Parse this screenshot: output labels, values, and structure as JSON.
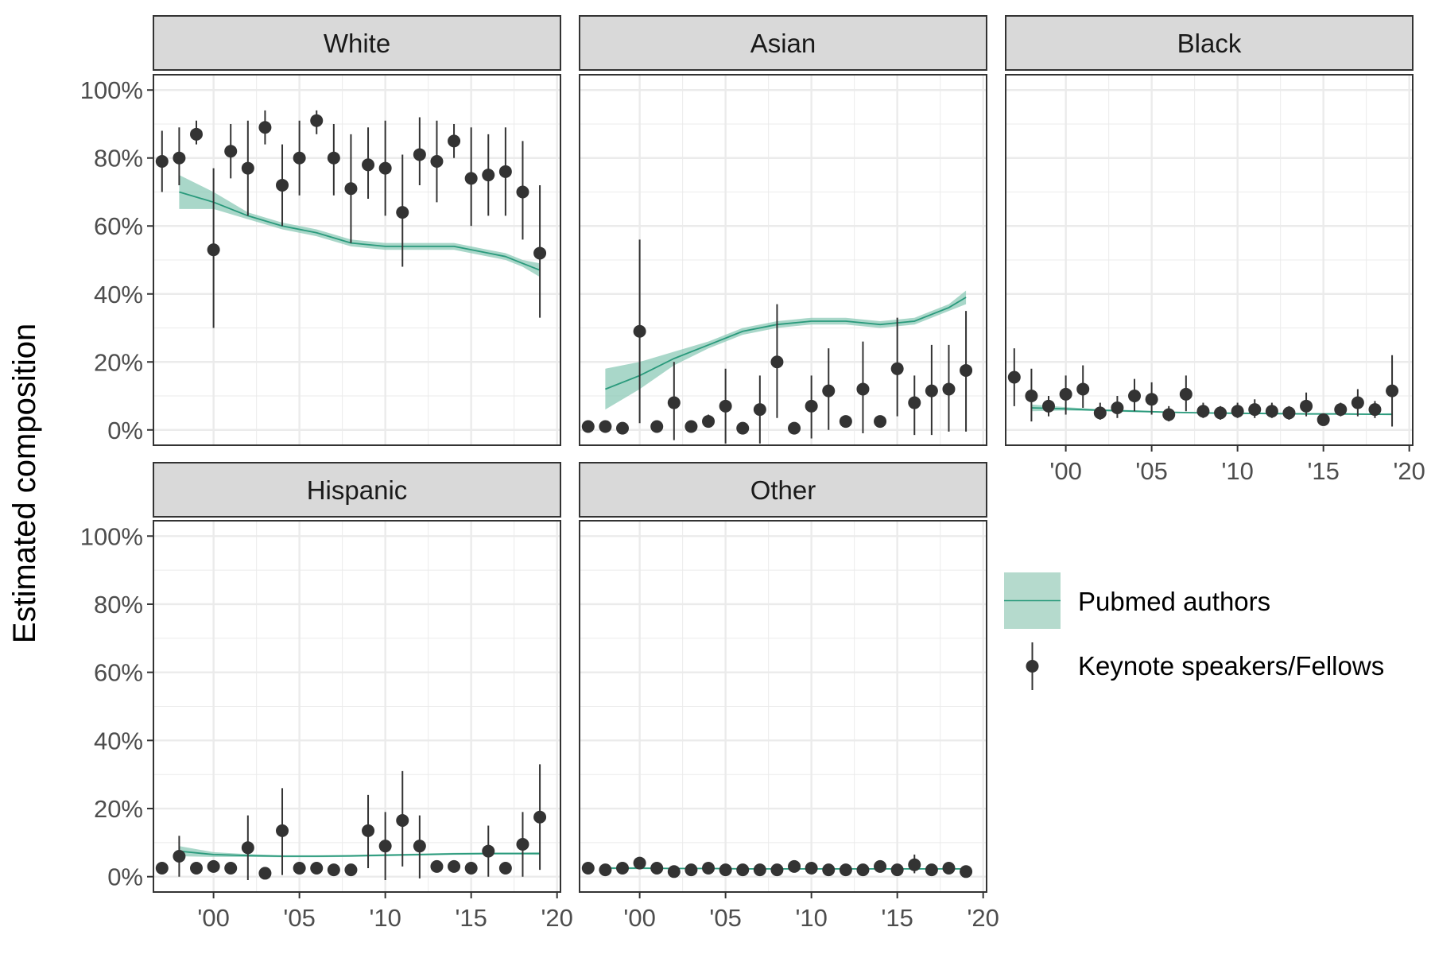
{
  "chart_data": {
    "type": "scatter",
    "ylabel": "Estimated composition",
    "y_ticks": [
      "100%",
      "80%",
      "60%",
      "40%",
      "20%",
      "0%"
    ],
    "y_tick_values": [
      1.0,
      0.8,
      0.6,
      0.4,
      0.2,
      0.0
    ],
    "x_ticks": [
      "'00",
      "'05",
      "'10",
      "'15",
      "'20"
    ],
    "x_tick_values": [
      2000,
      2005,
      2010,
      2015,
      2020
    ],
    "xlim": [
      1996.5,
      2020.2
    ],
    "ylim": [
      -0.045,
      1.045
    ],
    "grid": true,
    "legend_position": "right",
    "legend": [
      {
        "label": "Pubmed authors",
        "kind": "ribbon-line"
      },
      {
        "label": "Keynote speakers/Fellows",
        "kind": "point-range"
      }
    ],
    "colors": {
      "line": "#2a9a7c",
      "ribbon": "#8cc9b7",
      "point": "#333333",
      "strip": "#d9d9d9",
      "grid": "#ebebeb"
    },
    "years": [
      1997,
      1998,
      1999,
      2000,
      2001,
      2002,
      2003,
      2004,
      2005,
      2006,
      2007,
      2008,
      2009,
      2010,
      2011,
      2012,
      2013,
      2014,
      2015,
      2016,
      2017,
      2018,
      2019
    ],
    "panels": [
      {
        "name": "White",
        "points": {
          "y": [
            0.79,
            0.8,
            0.87,
            0.53,
            0.82,
            0.77,
            0.89,
            0.72,
            0.8,
            0.91,
            0.8,
            0.71,
            0.78,
            0.77,
            0.64,
            0.81,
            0.79,
            0.85,
            0.74,
            0.75,
            0.76,
            0.7,
            0.52
          ],
          "lo": [
            0.7,
            0.72,
            0.84,
            0.3,
            0.74,
            0.63,
            0.84,
            0.6,
            0.69,
            0.87,
            0.69,
            0.55,
            0.68,
            0.63,
            0.48,
            0.72,
            0.67,
            0.8,
            0.6,
            0.63,
            0.63,
            0.56,
            0.33
          ],
          "hi": [
            0.88,
            0.89,
            0.91,
            0.77,
            0.9,
            0.91,
            0.94,
            0.84,
            0.91,
            0.94,
            0.9,
            0.87,
            0.89,
            0.91,
            0.81,
            0.92,
            0.91,
            0.9,
            0.89,
            0.87,
            0.89,
            0.85,
            0.72
          ]
        },
        "trend": {
          "x": [
            1998,
            2000,
            2002,
            2004,
            2006,
            2008,
            2010,
            2012,
            2014,
            2016,
            2017,
            2018,
            2019
          ],
          "y": [
            0.7,
            0.67,
            0.63,
            0.6,
            0.58,
            0.55,
            0.54,
            0.54,
            0.54,
            0.52,
            0.51,
            0.49,
            0.47
          ],
          "lo": [
            0.65,
            0.65,
            0.62,
            0.59,
            0.57,
            0.54,
            0.53,
            0.53,
            0.53,
            0.51,
            0.5,
            0.48,
            0.45
          ],
          "hi": [
            0.75,
            0.7,
            0.64,
            0.61,
            0.59,
            0.56,
            0.55,
            0.55,
            0.55,
            0.53,
            0.52,
            0.5,
            0.49
          ]
        }
      },
      {
        "name": "Asian",
        "points": {
          "y": [
            0.01,
            0.01,
            0.005,
            0.29,
            0.01,
            0.08,
            0.01,
            0.025,
            0.07,
            0.005,
            0.06,
            0.2,
            0.005,
            0.07,
            0.115,
            0.025,
            0.12,
            0.025,
            0.18,
            0.08,
            0.115,
            0.12,
            0.175
          ],
          "lo": [
            0.0,
            0.0,
            0.0,
            0.02,
            0.0,
            -0.03,
            0.0,
            0.01,
            -0.04,
            0.0,
            -0.04,
            0.035,
            0.0,
            -0.025,
            0.0,
            0.015,
            -0.01,
            0.015,
            0.04,
            -0.015,
            -0.015,
            -0.005,
            -0.005
          ],
          "hi": [
            0.02,
            0.02,
            0.01,
            0.56,
            0.02,
            0.2,
            0.02,
            0.045,
            0.18,
            0.01,
            0.16,
            0.37,
            0.01,
            0.16,
            0.24,
            0.035,
            0.26,
            0.035,
            0.33,
            0.16,
            0.25,
            0.25,
            0.35
          ]
        },
        "trend": {
          "x": [
            1998,
            2000,
            2002,
            2004,
            2006,
            2008,
            2010,
            2012,
            2014,
            2016,
            2017,
            2018,
            2019
          ],
          "y": [
            0.12,
            0.16,
            0.21,
            0.25,
            0.29,
            0.31,
            0.32,
            0.32,
            0.31,
            0.32,
            0.34,
            0.36,
            0.39
          ],
          "lo": [
            0.06,
            0.12,
            0.19,
            0.24,
            0.28,
            0.3,
            0.31,
            0.31,
            0.3,
            0.31,
            0.33,
            0.35,
            0.37
          ],
          "hi": [
            0.18,
            0.2,
            0.23,
            0.26,
            0.3,
            0.32,
            0.33,
            0.33,
            0.32,
            0.33,
            0.35,
            0.37,
            0.41
          ]
        }
      },
      {
        "name": "Black",
        "points": {
          "y": [
            0.155,
            0.1,
            0.07,
            0.105,
            0.12,
            0.05,
            0.065,
            0.1,
            0.09,
            0.045,
            0.105,
            0.055,
            0.05,
            0.055,
            0.06,
            0.055,
            0.05,
            0.07,
            0.03,
            0.06,
            0.08,
            0.06,
            0.115
          ],
          "lo": [
            0.07,
            0.025,
            0.04,
            0.045,
            0.065,
            0.03,
            0.035,
            0.055,
            0.045,
            0.025,
            0.055,
            0.035,
            0.03,
            0.035,
            0.035,
            0.035,
            0.03,
            0.04,
            0.02,
            0.04,
            0.04,
            0.035,
            0.01
          ],
          "hi": [
            0.24,
            0.18,
            0.1,
            0.16,
            0.19,
            0.08,
            0.1,
            0.15,
            0.14,
            0.07,
            0.16,
            0.08,
            0.07,
            0.08,
            0.09,
            0.08,
            0.07,
            0.11,
            0.04,
            0.08,
            0.12,
            0.085,
            0.22
          ]
        },
        "trend": {
          "x": [
            1998,
            2000,
            2002,
            2004,
            2006,
            2008,
            2010,
            2012,
            2014,
            2016,
            2018,
            2019
          ],
          "y": [
            0.065,
            0.062,
            0.058,
            0.055,
            0.052,
            0.05,
            0.049,
            0.048,
            0.047,
            0.047,
            0.046,
            0.046
          ],
          "lo": [
            0.055,
            0.057,
            0.055,
            0.052,
            0.05,
            0.048,
            0.047,
            0.046,
            0.045,
            0.045,
            0.044,
            0.043
          ],
          "hi": [
            0.075,
            0.067,
            0.061,
            0.058,
            0.054,
            0.052,
            0.051,
            0.05,
            0.049,
            0.049,
            0.048,
            0.049
          ]
        }
      },
      {
        "name": "Hispanic",
        "points": {
          "y": [
            0.025,
            0.06,
            0.025,
            0.03,
            0.025,
            0.085,
            0.01,
            0.135,
            0.025,
            0.025,
            0.02,
            0.02,
            0.135,
            0.09,
            0.165,
            0.09,
            0.03,
            0.03,
            0.025,
            0.075,
            0.025,
            0.095,
            0.175
          ],
          "lo": [
            0.015,
            0.0,
            0.015,
            0.02,
            0.015,
            -0.01,
            0.005,
            0.005,
            0.015,
            0.015,
            0.01,
            0.01,
            0.025,
            -0.01,
            0.03,
            -0.005,
            0.02,
            0.02,
            0.015,
            0.0,
            0.015,
            0.0,
            0.02
          ],
          "hi": [
            0.035,
            0.12,
            0.035,
            0.04,
            0.035,
            0.18,
            0.015,
            0.26,
            0.035,
            0.035,
            0.03,
            0.03,
            0.24,
            0.19,
            0.31,
            0.18,
            0.04,
            0.04,
            0.035,
            0.15,
            0.035,
            0.19,
            0.33
          ]
        },
        "trend": {
          "x": [
            1998,
            2000,
            2002,
            2004,
            2006,
            2008,
            2010,
            2012,
            2014,
            2016,
            2018,
            2019
          ],
          "y": [
            0.075,
            0.065,
            0.062,
            0.06,
            0.06,
            0.061,
            0.063,
            0.065,
            0.067,
            0.068,
            0.068,
            0.068
          ],
          "lo": [
            0.06,
            0.058,
            0.058,
            0.057,
            0.057,
            0.058,
            0.06,
            0.062,
            0.064,
            0.065,
            0.065,
            0.064
          ],
          "hi": [
            0.09,
            0.072,
            0.066,
            0.063,
            0.063,
            0.064,
            0.066,
            0.068,
            0.07,
            0.071,
            0.071,
            0.072
          ]
        }
      },
      {
        "name": "Other",
        "points": {
          "y": [
            0.025,
            0.02,
            0.025,
            0.04,
            0.025,
            0.015,
            0.02,
            0.025,
            0.02,
            0.02,
            0.02,
            0.02,
            0.03,
            0.025,
            0.02,
            0.02,
            0.02,
            0.03,
            0.02,
            0.035,
            0.02,
            0.025,
            0.015
          ],
          "lo": [
            0.018,
            0.012,
            0.018,
            0.025,
            0.018,
            0.01,
            0.012,
            0.018,
            0.012,
            0.012,
            0.012,
            0.012,
            0.018,
            0.018,
            0.012,
            0.012,
            0.012,
            0.018,
            0.012,
            0.01,
            0.012,
            0.018,
            0.01
          ],
          "hi": [
            0.032,
            0.028,
            0.032,
            0.055,
            0.032,
            0.02,
            0.028,
            0.032,
            0.028,
            0.028,
            0.028,
            0.028,
            0.042,
            0.032,
            0.028,
            0.028,
            0.028,
            0.042,
            0.028,
            0.065,
            0.028,
            0.032,
            0.02
          ]
        },
        "trend": {
          "x": [
            1998,
            2000,
            2002,
            2004,
            2006,
            2008,
            2010,
            2012,
            2014,
            2016,
            2018,
            2019
          ],
          "y": [
            0.025,
            0.025,
            0.024,
            0.024,
            0.023,
            0.023,
            0.023,
            0.023,
            0.023,
            0.023,
            0.023,
            0.023
          ],
          "lo": [
            0.022,
            0.022,
            0.022,
            0.022,
            0.021,
            0.021,
            0.021,
            0.021,
            0.021,
            0.021,
            0.021,
            0.021
          ],
          "hi": [
            0.028,
            0.028,
            0.026,
            0.026,
            0.025,
            0.025,
            0.025,
            0.025,
            0.025,
            0.025,
            0.025,
            0.025
          ]
        }
      }
    ]
  }
}
